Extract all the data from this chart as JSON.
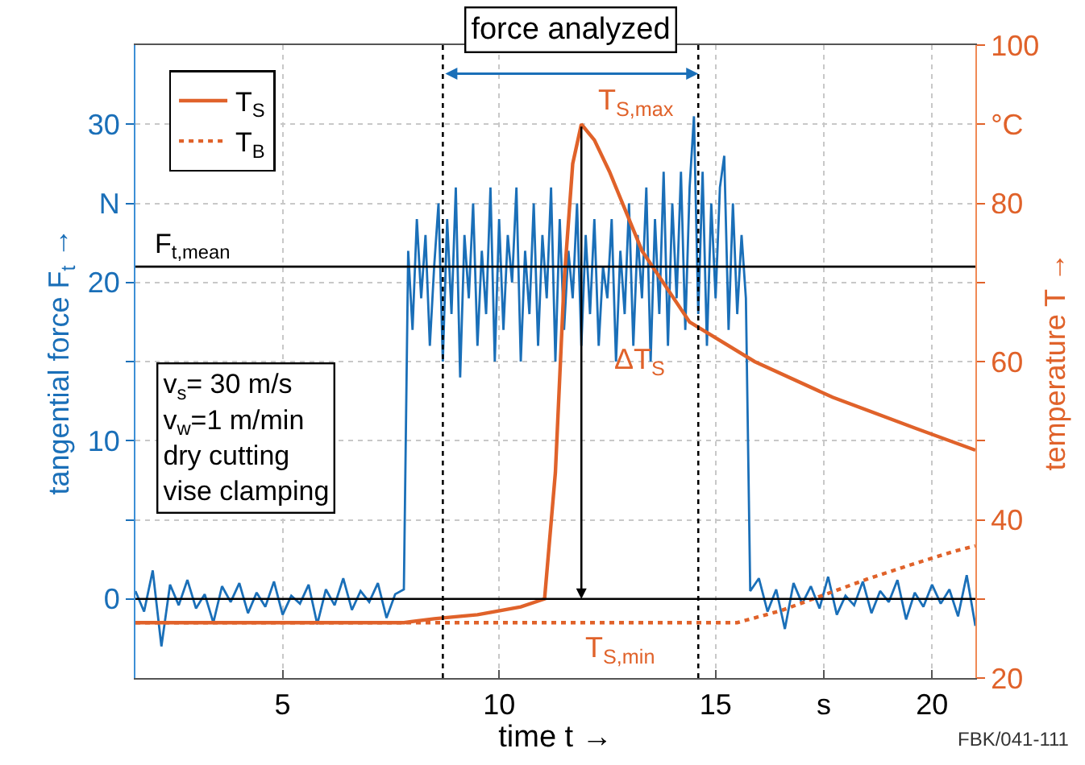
{
  "chart_data": {
    "type": "line",
    "xlabel": "time t →",
    "ylabel": "tangential force F$_{t}$ →",
    "y2label": "temperature T →",
    "xlim": [
      1.6,
      21
    ],
    "xticks": [
      5,
      10,
      15,
      {
        "value": 17.5,
        "label": "s"
      },
      20
    ],
    "ylim": [
      -5,
      35
    ],
    "yticks": [
      0,
      {
        "value": 5,
        "label": null
      },
      10,
      {
        "value": 15,
        "label": null
      },
      20,
      {
        "value": 25,
        "label": "N"
      },
      30
    ],
    "y2lim": [
      20,
      100
    ],
    "y2ticks": [
      20,
      {
        "value": 30,
        "label": null
      },
      40,
      {
        "value": 50,
        "label": null
      },
      60,
      {
        "value": 70,
        "label": null
      },
      80,
      {
        "value": 90,
        "label": "°C"
      },
      100
    ],
    "grid": true,
    "legend": "top left",
    "series": [
      {
        "color": "#1a6fb8",
        "x": [
          1.6,
          1.8,
          2.0,
          2.2,
          2.4,
          2.6,
          2.8,
          3.0,
          3.2,
          3.4,
          3.6,
          3.8,
          4.0,
          4.2,
          4.4,
          4.6,
          4.8,
          5.0,
          5.2,
          5.4,
          5.6,
          5.8,
          6.0,
          6.2,
          6.4,
          6.6,
          6.8,
          7.0,
          7.2,
          7.4,
          7.6,
          7.8,
          7.9,
          8.0,
          8.1,
          8.2,
          8.3,
          8.4,
          8.5,
          8.6,
          8.7,
          8.8,
          8.9,
          9.0,
          9.1,
          9.2,
          9.3,
          9.4,
          9.5,
          9.6,
          9.7,
          9.8,
          9.9,
          10.0,
          10.1,
          10.2,
          10.3,
          10.4,
          10.5,
          10.6,
          10.7,
          10.8,
          10.9,
          11.0,
          11.1,
          11.2,
          11.3,
          11.4,
          11.5,
          11.6,
          11.7,
          11.8,
          11.9,
          12.0,
          12.1,
          12.2,
          12.3,
          12.4,
          12.5,
          12.6,
          12.7,
          12.8,
          12.9,
          13.0,
          13.1,
          13.2,
          13.3,
          13.4,
          13.5,
          13.6,
          13.7,
          13.8,
          13.9,
          14.0,
          14.1,
          14.2,
          14.3,
          14.4,
          14.5,
          14.6,
          14.7,
          14.8,
          14.9,
          15.0,
          15.1,
          15.2,
          15.3,
          15.4,
          15.5,
          15.6,
          15.7,
          15.8,
          16.0,
          16.2,
          16.4,
          16.6,
          16.8,
          17.0,
          17.2,
          17.4,
          17.6,
          17.8,
          18.0,
          18.2,
          18.4,
          18.6,
          18.8,
          19.0,
          19.2,
          19.4,
          19.6,
          19.8,
          20.0,
          20.2,
          20.4,
          20.6,
          20.8,
          21.0
        ],
        "values": [
          0.5,
          -0.8,
          1.8,
          -3.0,
          0.9,
          -0.4,
          1.2,
          -0.6,
          0.3,
          -1.5,
          0.8,
          -0.2,
          1.0,
          -0.9,
          0.4,
          -0.5,
          1.1,
          -1.0,
          0.2,
          -0.3,
          0.9,
          -1.6,
          0.6,
          -0.4,
          1.3,
          -0.7,
          0.5,
          -0.2,
          1.0,
          -1.2,
          0.3,
          0.6,
          22,
          17,
          24,
          19,
          23,
          16,
          21,
          25,
          15,
          24,
          18,
          26,
          14,
          23,
          19,
          25,
          16,
          22,
          18,
          26,
          15,
          24,
          17,
          23,
          20,
          26,
          15,
          22,
          18,
          25,
          16,
          23,
          19,
          26,
          15,
          24,
          17,
          22,
          19,
          25,
          16,
          23,
          18,
          24,
          16,
          21,
          19,
          24,
          15,
          22,
          18,
          25,
          16,
          23,
          19,
          26,
          15,
          24,
          18,
          27,
          16,
          25,
          19,
          27,
          17,
          26,
          30.5,
          18,
          27,
          16,
          25,
          19,
          26,
          28,
          17,
          25,
          18,
          23,
          19,
          0.5,
          1.3,
          -0.8,
          0.6,
          -1.9,
          1.0,
          -0.3,
          0.8,
          -0.6,
          1.4,
          -1.0,
          0.2,
          -0.4,
          1.1,
          -0.9,
          0.5,
          -0.2,
          1.2,
          -1.3,
          0.4,
          -0.5,
          0.9,
          -0.3,
          0.6,
          -1.1,
          1.5,
          -1.7
        ]
      },
      {
        "name": "T$_{S}$",
        "color": "#e0622a",
        "axis": "y2",
        "line_style": "solid",
        "x": [
          1.6,
          4,
          6,
          7.8,
          8.5,
          9.5,
          10.5,
          11.05,
          11.3,
          11.5,
          11.7,
          11.9,
          12.2,
          12.55,
          13.3,
          14.4,
          15.9,
          17.7,
          19.6,
          21
        ],
        "values": [
          27,
          27,
          27,
          27,
          27.5,
          28,
          29,
          30,
          46,
          70,
          85,
          90,
          88,
          84,
          74,
          65,
          60,
          55.5,
          51.6,
          48.8
        ]
      },
      {
        "name": "T$_{B}$",
        "color": "#e0622a",
        "axis": "y2",
        "line_style": "dotted",
        "x": [
          1.6,
          8,
          12,
          15.5,
          16.5,
          17.5,
          18.5,
          19.5,
          20.5,
          21
        ],
        "values": [
          27,
          27,
          27,
          27,
          28.5,
          30.5,
          32.5,
          34.3,
          36,
          36.7
        ]
      }
    ],
    "ref_lines": [
      {
        "axis": "y",
        "value": 21,
        "label": "F$_{t,mean}$",
        "color": "#000000"
      },
      {
        "axis": "y",
        "value": 0,
        "color": "#000000"
      },
      {
        "axis": "x",
        "value": 8.7,
        "color": "#000000",
        "line_style": "dotted"
      },
      {
        "axis": "x",
        "value": 14.6,
        "color": "#000000",
        "line_style": "dotted"
      }
    ],
    "annotations": [
      {
        "text": "ΔT$_{S}$",
        "x": 12.6,
        "y": 15
      },
      "force analyzed",
      "T$_{S,max}$",
      "T$_{S,min}$",
      "v$_{s}$= 30 m/s\nv$_{w}$=1 m/min\ndry cutting\nvise clamping",
      "FBK/041-111"
    ]
  }
}
